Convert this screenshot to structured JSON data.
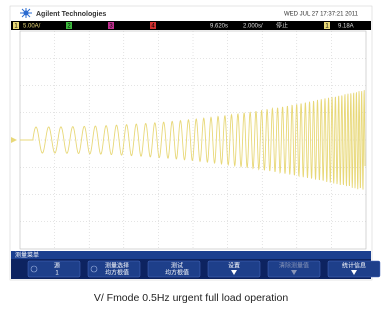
{
  "header": {
    "brand": "Agilent Technologies",
    "datetime": "WED JUL 27 17:37:21 2011"
  },
  "status_bar": {
    "ch1": "1",
    "ch1_scale": "5.00A/",
    "ch2": "2",
    "ch3": "3",
    "ch4": "4",
    "time_ref": "9.620s",
    "time_scale": "2.000s/",
    "run_state": "停止",
    "trigger_ch": "1",
    "trigger_level": "9.18A"
  },
  "menu": {
    "title": "测量菜单",
    "buttons": [
      {
        "line1": "源",
        "line2": "1"
      },
      {
        "line1": "测量选择",
        "line2": "均方根值"
      },
      {
        "line1": "测试",
        "line2": "均方根值"
      },
      {
        "line1": "设置"
      },
      {
        "line1": "清除测量值"
      },
      {
        "line1": "统计信息"
      }
    ]
  },
  "caption": "V/ Fmode 0.5Hz urgent full load operation"
}
